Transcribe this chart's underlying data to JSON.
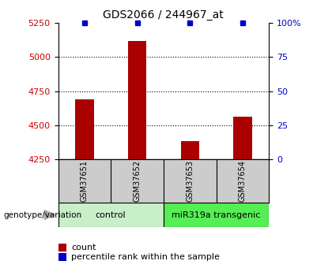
{
  "title": "GDS2066 / 244967_at",
  "samples": [
    "GSM37651",
    "GSM37652",
    "GSM37653",
    "GSM37654"
  ],
  "counts": [
    4690,
    5120,
    4385,
    4560
  ],
  "percentile_ranks": [
    100,
    100,
    100,
    100
  ],
  "ylim_left": [
    4250,
    5250
  ],
  "yticks_left": [
    4250,
    4500,
    4750,
    5000,
    5250
  ],
  "ylim_right": [
    0,
    100
  ],
  "yticks_right": [
    0,
    25,
    50,
    75,
    100
  ],
  "bar_color": "#aa0000",
  "percentile_color": "#0000cc",
  "groups": [
    {
      "label": "control",
      "samples": [
        0,
        1
      ],
      "color": "#c8efc8"
    },
    {
      "label": "miR319a transgenic",
      "samples": [
        2,
        3
      ],
      "color": "#55ee55"
    }
  ],
  "group_label": "genotype/variation",
  "legend_count_label": "count",
  "legend_pct_label": "percentile rank within the sample",
  "background_color": "#ffffff",
  "plot_bg_color": "#ffffff",
  "tick_label_color_left": "#cc0000",
  "tick_label_color_right": "#0000cc",
  "sample_box_color": "#cccccc",
  "bar_width": 0.35
}
